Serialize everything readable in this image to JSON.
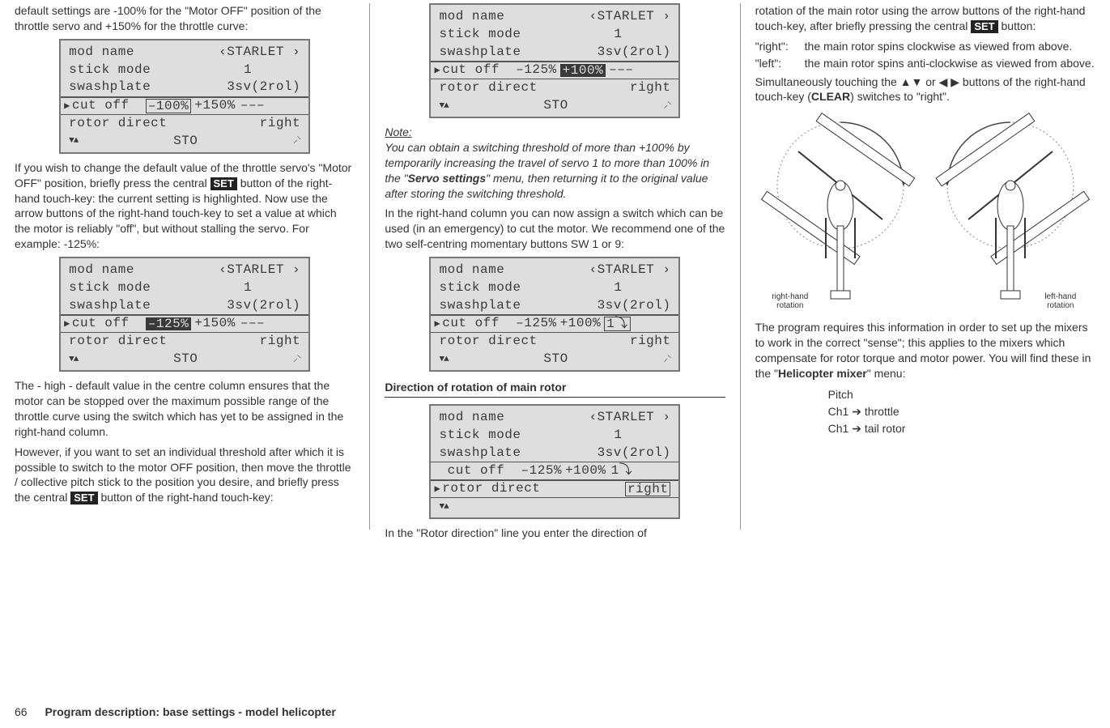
{
  "col1": {
    "p1": "default settings are -100% for the \"Motor OFF\" position of the throttle servo and +150% for the throttle curve:",
    "p2_a": "If you wish to change the default value of the throttle servo's \"Motor OFF\" position, briefly press the central ",
    "p2_b": " button of the right-hand touch-key: the current setting is highlighted. Now use the arrow buttons of the right-hand touch-key to set a value at which the motor is reliably \"off\", but without stalling the servo. For example: -125%:",
    "p3": "The - high - default value in the centre column ensures that the motor can be stopped over the maximum possible range of the throttle curve using the switch which has yet to be assigned in the right-hand column.",
    "p4_a": "However, if you want to set an individual threshold after which it is possible to switch to the motor OFF position, then move the throttle / collective pitch stick to the position you desire, and briefly press the central ",
    "p4_b": " button of the right-hand touch-key:",
    "set": "SET"
  },
  "col2": {
    "note_title": "Note:",
    "note_body_a": "You can obtain a switching threshold of more than +100% by temporarily increasing the travel of servo 1 to more than 100% in the \"",
    "note_body_bold": "Servo settings",
    "note_body_b": "\" menu, then returning it to the original value after storing the switching threshold.",
    "p1": "In the right-hand column you can now assign a switch which can be used (in an emergency) to cut the motor. We recommend one of the two self-centring momentary buttons SW 1 or 9:",
    "section": "Direction of rotation of main rotor",
    "p2": "In the \"Rotor direction\" line you enter the direction of"
  },
  "col3": {
    "p1_a": "rotation of the main rotor using the arrow buttons of the right-hand touch-key, after briefly pressing the central ",
    "p1_b": " button:",
    "set": "SET",
    "def_right_k": "\"right\":",
    "def_right_v": "the main rotor spins clockwise as viewed from above.",
    "def_left_k": "\"left\":",
    "def_left_v": "the main rotor spins anti-clockwise as viewed from above.",
    "p2_a": "Simultaneously touching the ▲▼ or ◀ ▶ buttons of the right-hand touch-key (",
    "p2_bold": "CLEAR",
    "p2_b": ") switches to \"right\".",
    "cap_right": "right-hand\nrotation",
    "cap_left": "left-hand\nrotation",
    "p3_a": "The program requires this information in order to set up the mixers to work in the correct \"sense\"; this applies to the mixers which compensate for rotor torque and motor power. You will find these in the \"",
    "p3_bold": "Helicopter mixer",
    "p3_b": "\" menu:",
    "mix1": "Pitch",
    "mix2": "Ch1 ➔ throttle",
    "mix3": "Ch1 ➔ tail rotor"
  },
  "lcd": {
    "mod_name_l": "mod name",
    "mod_name_v": "‹STARLET ›",
    "stick_l": "stick mode",
    "stick_v": "1",
    "swash_l": "swashplate",
    "swash_v": "3sv(2rol)",
    "cutoff_l": "cut off",
    "rotor_l": "rotor direct",
    "rotor_v": "right",
    "sto": "STO",
    "lcd1": {
      "a": "–100%",
      "b": "+150%",
      "c": "–––"
    },
    "lcd2": {
      "a": "–125%",
      "b": "+150%",
      "c": "–––"
    },
    "lcd3": {
      "a": "–125%",
      "b": "+100%",
      "c": "–––"
    },
    "lcd4": {
      "a": "–125%",
      "b": "+100%",
      "c": " 1⤵"
    },
    "lcd5": {
      "a": "–125%",
      "b": "+100%",
      "c": "1⤵"
    }
  },
  "footer": {
    "page": "66",
    "title": "Program description: base settings - model helicopter"
  }
}
